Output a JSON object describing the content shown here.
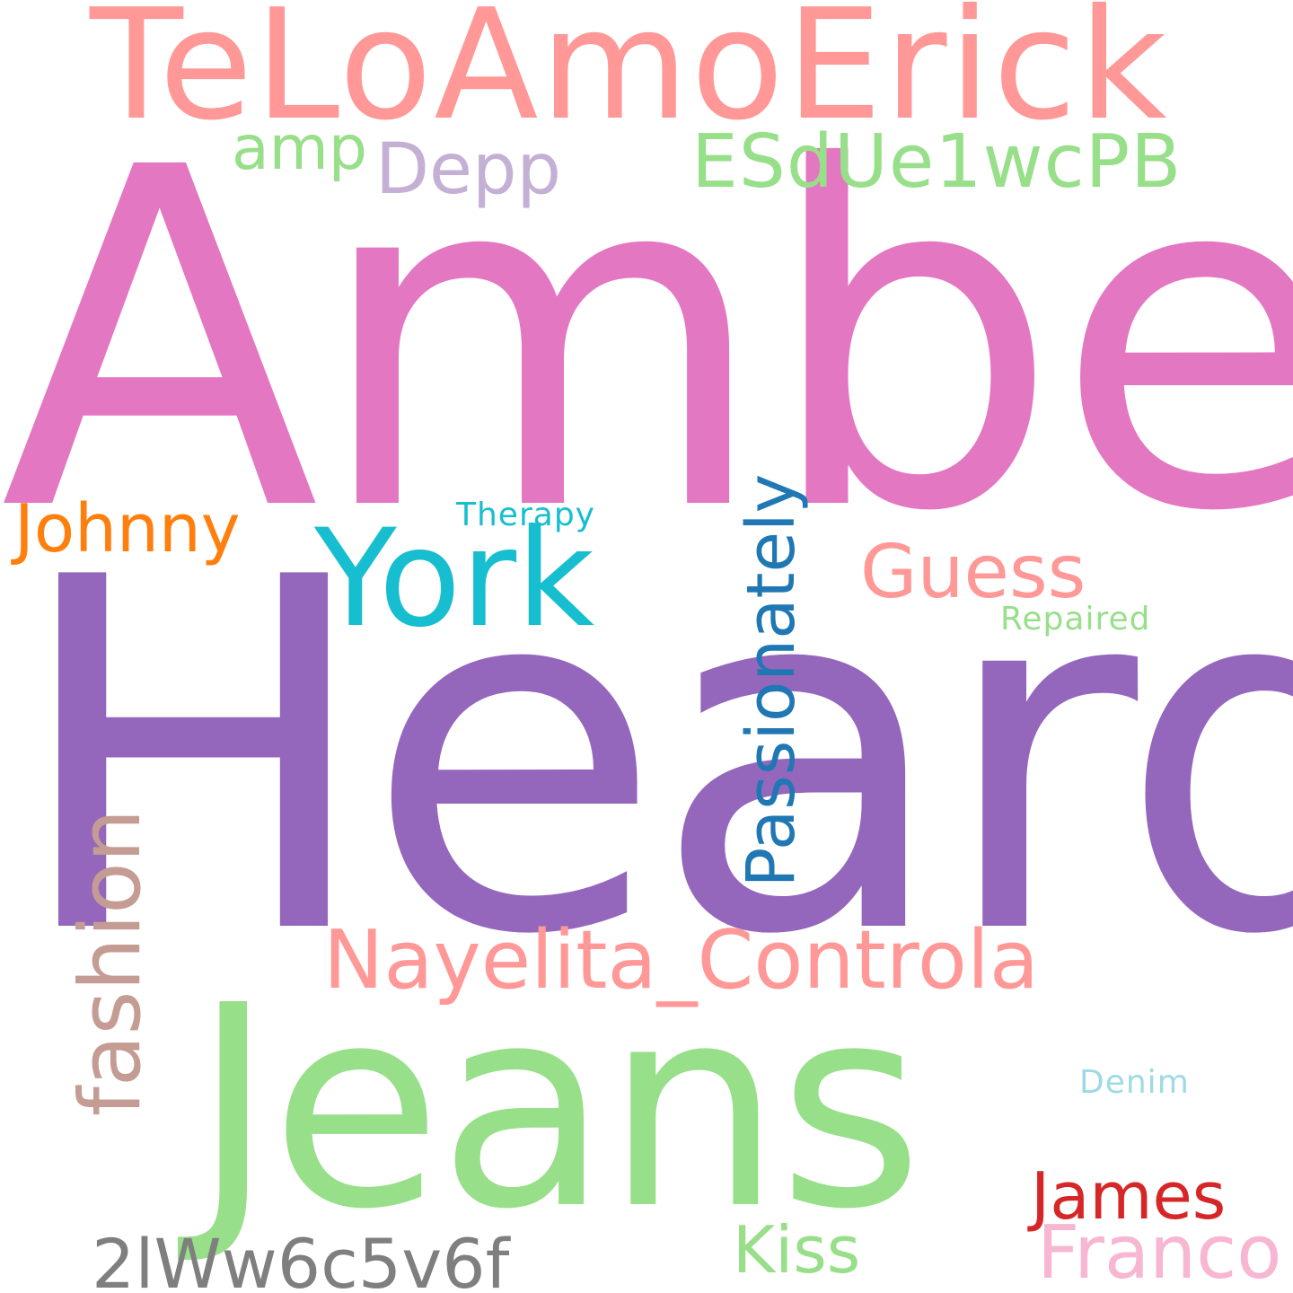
{
  "words": [
    {
      "text": "Amber",
      "color": "#e377c2"
    },
    {
      "text": "Heard",
      "color": "#9467bd"
    },
    {
      "text": "TeLoAmoErick",
      "color": "#ff9896"
    },
    {
      "text": "Jeans",
      "color": "#98df8a"
    },
    {
      "text": "York",
      "color": "#17becf"
    },
    {
      "text": "Nayelita_Controla",
      "color": "#ff9896"
    },
    {
      "text": "Passionately",
      "color": "#1f77b4",
      "orientation": "vertical"
    },
    {
      "text": "fashion",
      "color": "#c49c94",
      "orientation": "vertical"
    },
    {
      "text": "ESdUe1wcPB",
      "color": "#98df8a"
    },
    {
      "text": "Guess",
      "color": "#ff9896"
    },
    {
      "text": "Depp",
      "color": "#c5b0d5"
    },
    {
      "text": "Johnny",
      "color": "#ff7f0e"
    },
    {
      "text": "amp",
      "color": "#98df8a"
    },
    {
      "text": "Franco",
      "color": "#f7b6d2"
    },
    {
      "text": "James",
      "color": "#d62728"
    },
    {
      "text": "Kiss",
      "color": "#98df8a"
    },
    {
      "text": "2lWw6c5v6f",
      "color": "#7f7f7f"
    },
    {
      "text": "Therapy",
      "color": "#17becf"
    },
    {
      "text": "Repaired",
      "color": "#98df8a"
    },
    {
      "text": "Denim",
      "color": "#9edae5"
    }
  ]
}
